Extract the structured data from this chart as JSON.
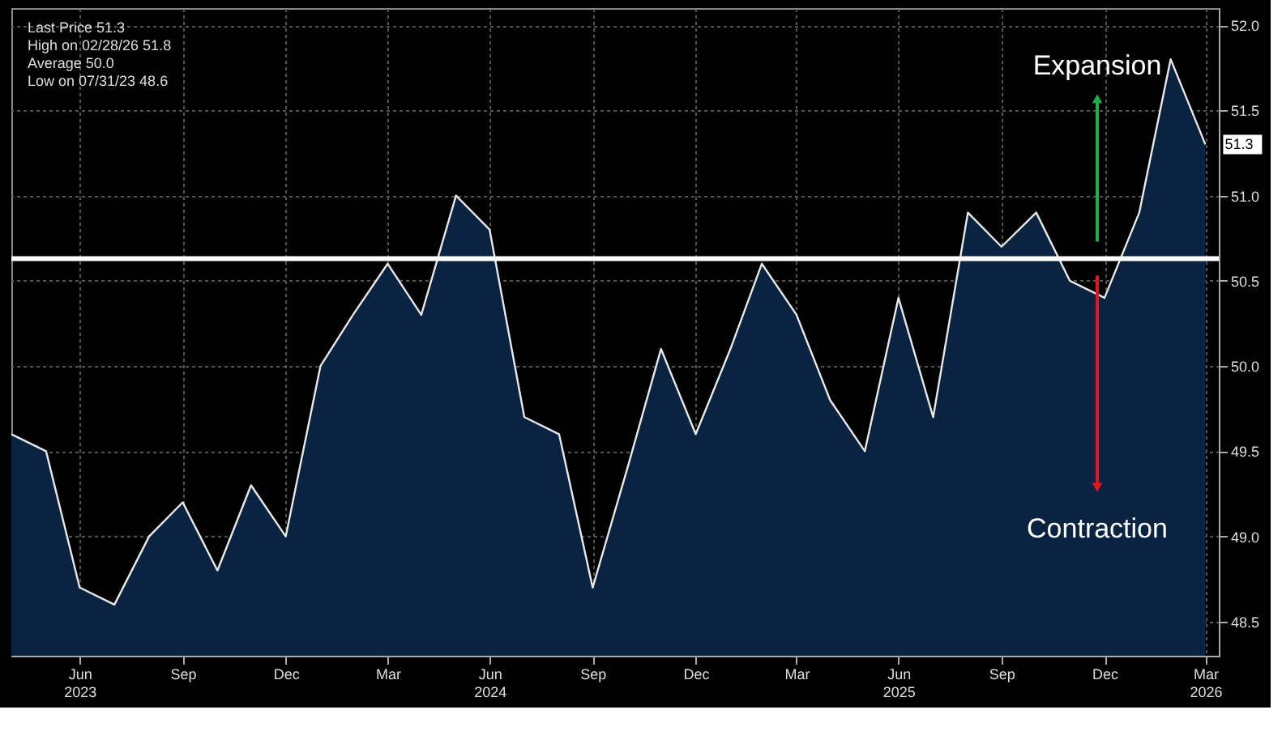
{
  "chart_data": {
    "type": "area",
    "x": [
      "2023-04-30",
      "2023-05-31",
      "2023-06-30",
      "2023-07-31",
      "2023-08-31",
      "2023-09-30",
      "2023-10-31",
      "2023-11-30",
      "2023-12-31",
      "2024-01-31",
      "2024-02-29",
      "2024-03-31",
      "2024-04-30",
      "2024-05-31",
      "2024-06-30",
      "2024-07-31",
      "2024-08-31",
      "2024-09-30",
      "2024-10-31",
      "2024-11-30",
      "2024-12-31",
      "2025-01-31",
      "2025-02-28",
      "2025-03-31",
      "2025-04-30",
      "2025-05-31",
      "2025-06-30",
      "2025-07-31",
      "2025-08-31",
      "2025-09-30",
      "2025-10-31",
      "2025-11-30",
      "2025-12-31",
      "2026-01-31",
      "2026-02-28",
      "2026-03-31"
    ],
    "series": [
      {
        "color": "#0a2340",
        "values": [
          49.6,
          49.5,
          48.7,
          48.6,
          49.0,
          49.2,
          48.8,
          49.3,
          49.0,
          50.0,
          50.3,
          50.6,
          50.3,
          51.0,
          50.8,
          49.7,
          49.6,
          48.7,
          49.4,
          50.1,
          49.6,
          50.1,
          50.6,
          50.3,
          49.8,
          49.5,
          50.4,
          49.7,
          50.9,
          50.7,
          50.9,
          50.5,
          50.4,
          50.9,
          51.8,
          51.3
        ],
        "value_labels": [
          null,
          null,
          null,
          null,
          null,
          null,
          null,
          null,
          null,
          null,
          null,
          null,
          null,
          null,
          null,
          null,
          null,
          null,
          null,
          null,
          null,
          null,
          null,
          null,
          null,
          null,
          null,
          null,
          null,
          null,
          null,
          null,
          null,
          null,
          null,
          "51.3"
        ]
      }
    ],
    "xlim": [
      "2023-04-30",
      "2026-04-12"
    ],
    "xticks": [
      {
        "value": "2023-06-30",
        "label": "Jun\n2023"
      },
      {
        "value": "2023-09-30",
        "label": "Sep"
      },
      {
        "value": "2023-12-31",
        "label": "Dec"
      },
      {
        "value": "2024-03-31",
        "label": "Mar"
      },
      {
        "value": "2024-06-30",
        "label": "Jun\n2024"
      },
      {
        "value": "2024-09-30",
        "label": "Sep"
      },
      {
        "value": "2024-12-31",
        "label": "Dec"
      },
      {
        "value": "2025-03-31",
        "label": "Mar"
      },
      {
        "value": "2025-06-30",
        "label": "Jun\n2025"
      },
      {
        "value": "2025-09-30",
        "label": "Sep"
      },
      {
        "value": "2025-12-31",
        "label": "Dec"
      },
      {
        "value": "2026-03-31",
        "label": "Mar\n2026"
      }
    ],
    "ylim": [
      48.3,
      52.1
    ],
    "yticks": [
      {
        "value": 48.5,
        "label": "48.5"
      },
      {
        "value": 49.0,
        "label": "49.0"
      },
      {
        "value": 49.5,
        "label": "49.5"
      },
      {
        "value": 50.0,
        "label": "50.0"
      },
      {
        "value": 50.5,
        "label": "50.5"
      },
      {
        "value": 51.0,
        "label": "51.0"
      },
      {
        "value": 51.5,
        "label": "51.5"
      },
      {
        "value": 52.0,
        "label": "52.0"
      }
    ],
    "grid": true,
    "ref_lines": [
      {
        "axis": "y",
        "value": 50.63,
        "label": null,
        "color": "#ffffff"
      }
    ],
    "annotations": [
      "Last Price 51.3",
      "High on 02/28/26 51.8",
      "Average 50.0",
      "Low on 07/31/23 48.6",
      "Expansion",
      "Contraction"
    ]
  }
}
